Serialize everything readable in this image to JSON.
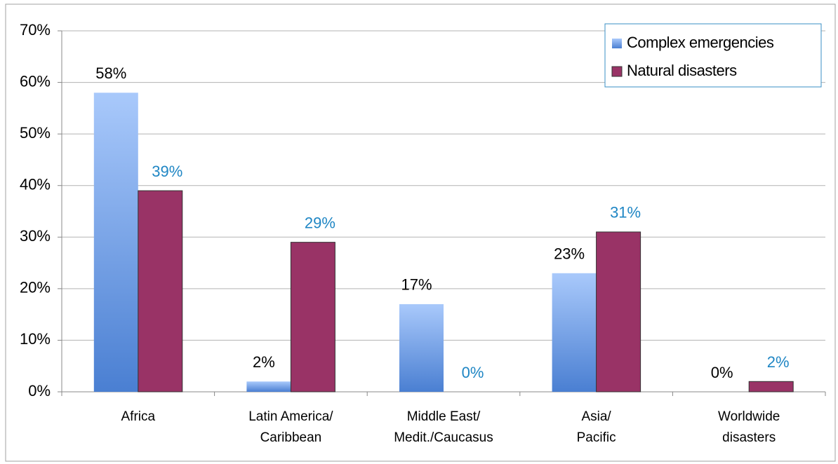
{
  "chart_data": {
    "type": "bar",
    "categories": [
      [
        "Africa"
      ],
      [
        "Latin America/",
        "Caribbean"
      ],
      [
        "Middle East/",
        "Medit./Caucasus"
      ],
      [
        "Asia/",
        "Pacific"
      ],
      [
        "Worldwide",
        "disasters"
      ]
    ],
    "series": [
      {
        "name": "Complex emergencies",
        "color": "#6f9be2",
        "values": [
          58,
          2,
          17,
          23,
          0
        ],
        "value_labels": [
          "58%",
          "2%",
          "17%",
          "23%",
          "0%"
        ],
        "label_color": "#000000"
      },
      {
        "name": "Natural disasters",
        "color": "#993366",
        "values": [
          39,
          29,
          0,
          31,
          2
        ],
        "value_labels": [
          "39%",
          "29%",
          "0%",
          "31%",
          "2%"
        ],
        "label_color": "#1f86c4"
      }
    ],
    "ylim": [
      0,
      70
    ],
    "yticks": [
      {
        "value": 0,
        "label": "0%"
      },
      {
        "value": 10,
        "label": "10%"
      },
      {
        "value": 20,
        "label": "20%"
      },
      {
        "value": 30,
        "label": "30%"
      },
      {
        "value": 40,
        "label": "40%"
      },
      {
        "value": 50,
        "label": "50%"
      },
      {
        "value": 60,
        "label": "60%"
      },
      {
        "value": 70,
        "label": "70%"
      }
    ],
    "grid": true,
    "legend": "top-right"
  }
}
